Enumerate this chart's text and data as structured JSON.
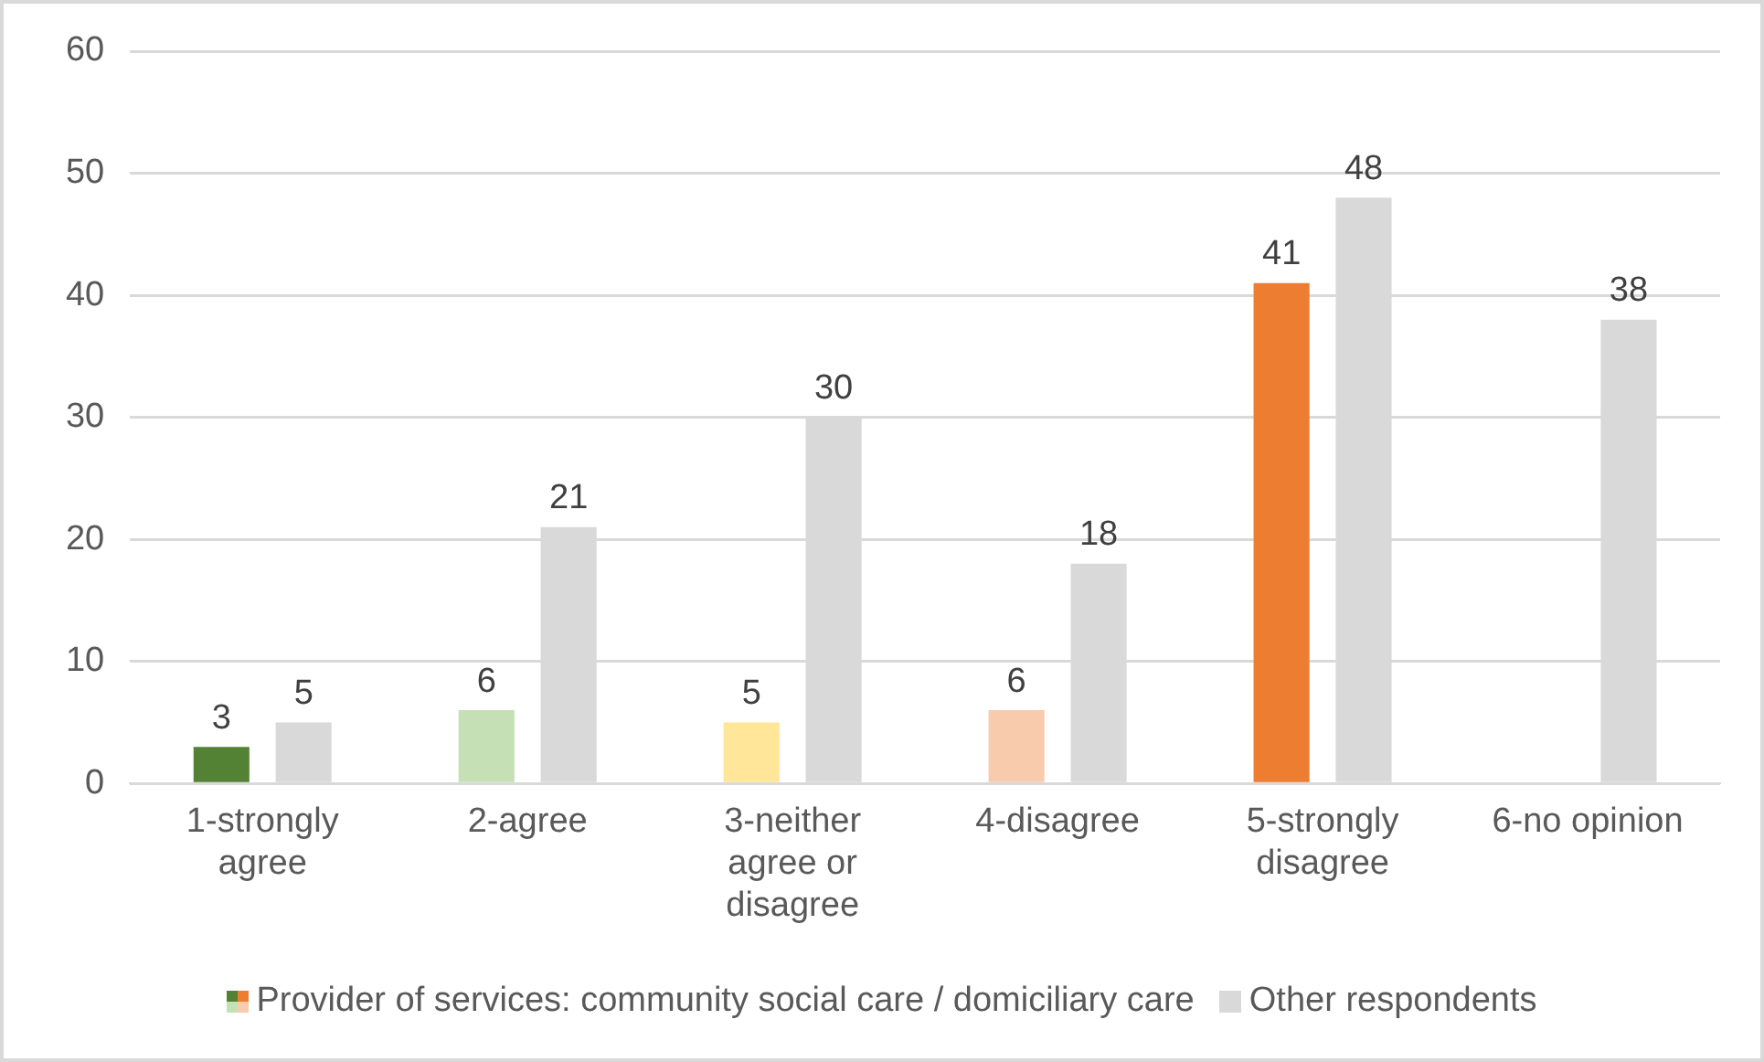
{
  "chart_data": {
    "type": "bar",
    "categories": [
      "1-strongly agree",
      "2-agree",
      "3-neither agree or disagree",
      "4-disagree",
      "5-strongly disagree",
      "6-no opinion"
    ],
    "series": [
      {
        "name": "Provider of services: community social care / domiciliary care",
        "colors": [
          "#548235",
          "#c5e0b4",
          "#ffe699",
          "#f8cbad",
          "#ed7d31",
          null
        ],
        "values": [
          3,
          6,
          5,
          6,
          41,
          null
        ]
      },
      {
        "name": "Other respondents",
        "color": "#d9d9d9",
        "values": [
          5,
          21,
          30,
          18,
          48,
          38
        ]
      }
    ],
    "ylim": [
      0,
      60
    ],
    "yticks": [
      0,
      10,
      20,
      30,
      40,
      50,
      60
    ],
    "grid": "y",
    "legend": "bottom",
    "data_labels": true
  }
}
